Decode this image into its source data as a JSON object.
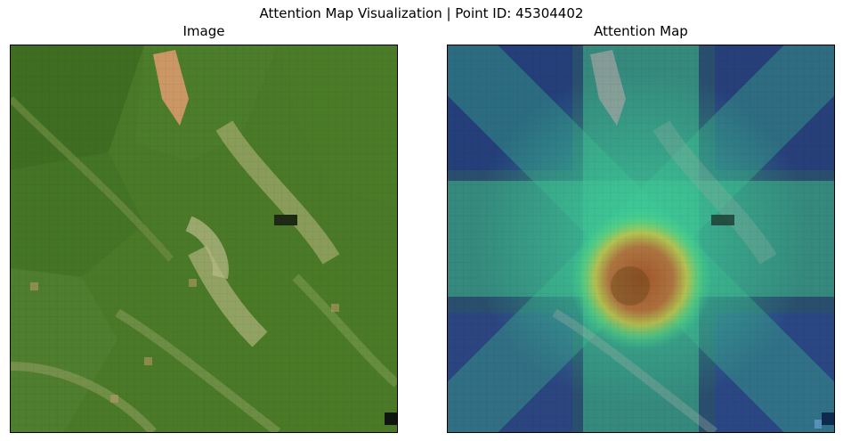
{
  "figure": {
    "suptitle": "Attention Map Visualization | Point ID: 45304402"
  },
  "panels": [
    {
      "title": "Image",
      "kind": "satellite-rgb-image"
    },
    {
      "title": "Attention Map",
      "kind": "satellite-image-with-jet-attention-overlay"
    }
  ],
  "colors": {
    "vegetation_dark": "#3f6a22",
    "vegetation_mid": "#5e8a34",
    "vegetation_light": "#9aaa6a",
    "bare_soil": "#d99a6a",
    "attention_low": "#1e3a8a",
    "attention_mid": "#3fcf8a",
    "attention_high": "#c0502a"
  }
}
